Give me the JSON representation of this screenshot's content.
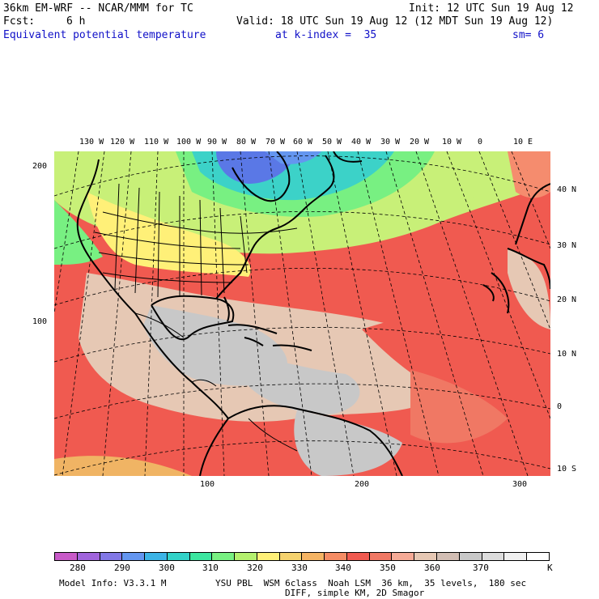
{
  "header": {
    "model": "36km EM-WRF -- NCAR/MMM for TC",
    "init": "Init: 12 UTC Sun 19 Aug 12",
    "fcst_label": "Fcst:",
    "fcst_value": "6 h",
    "valid": "Valid: 18 UTC Sun 19 Aug 12 (12 MDT Sun 19 Aug 12)",
    "field": "Equivalent potential temperature",
    "level": "at k-index =  35",
    "smooth": "sm= 6"
  },
  "map": {
    "lon_labels": [
      "130 W",
      "120 W",
      "110 W",
      "100 W",
      "90 W",
      "80 W",
      "70 W",
      "60 W",
      "50 W",
      "40 W",
      "30 W",
      "20 W",
      "10 W",
      "0",
      "10 E"
    ],
    "lat_labels": [
      "40 N",
      "30 N",
      "20 N",
      "10 N",
      "0",
      "10 S"
    ],
    "grid_y_labels": [
      "200",
      "100"
    ],
    "grid_x_labels": [
      "100",
      "200",
      "300"
    ],
    "colors": {
      "cold_high": "#5a78e6",
      "cyan": "#3cd2c8",
      "green": "#78f082",
      "lightgreen": "#c8f078",
      "yellow": "#fff078",
      "peach": "#f0b464",
      "salmon": "#f58c6e",
      "red": "#f05a50",
      "tan": "#e6c8b4",
      "gray": "#c8c8c8"
    }
  },
  "colorbar": {
    "colors": [
      "#c85ac8",
      "#a064dc",
      "#8278e6",
      "#6496f0",
      "#3cb4e6",
      "#32d2c8",
      "#3ce6a0",
      "#78f082",
      "#b4f06e",
      "#fff078",
      "#f5d26e",
      "#f5b464",
      "#f58c64",
      "#f05a50",
      "#f07864",
      "#f5aa96",
      "#e6c8b4",
      "#d2beb4",
      "#c8c8c8",
      "#dcdcdc",
      "#f0f0f0",
      "#ffffff"
    ],
    "labels": [
      "280",
      "290",
      "300",
      "310",
      "320",
      "330",
      "340",
      "350",
      "360",
      "370"
    ],
    "unit": "K"
  },
  "footer": {
    "info": "Model Info: V3.3.1 M",
    "physics": "YSU PBL  WSM 6class  Noah LSM  36 km,  35 levels,  180 sec",
    "diff": "DIFF, simple KM, 2D Smagor"
  }
}
